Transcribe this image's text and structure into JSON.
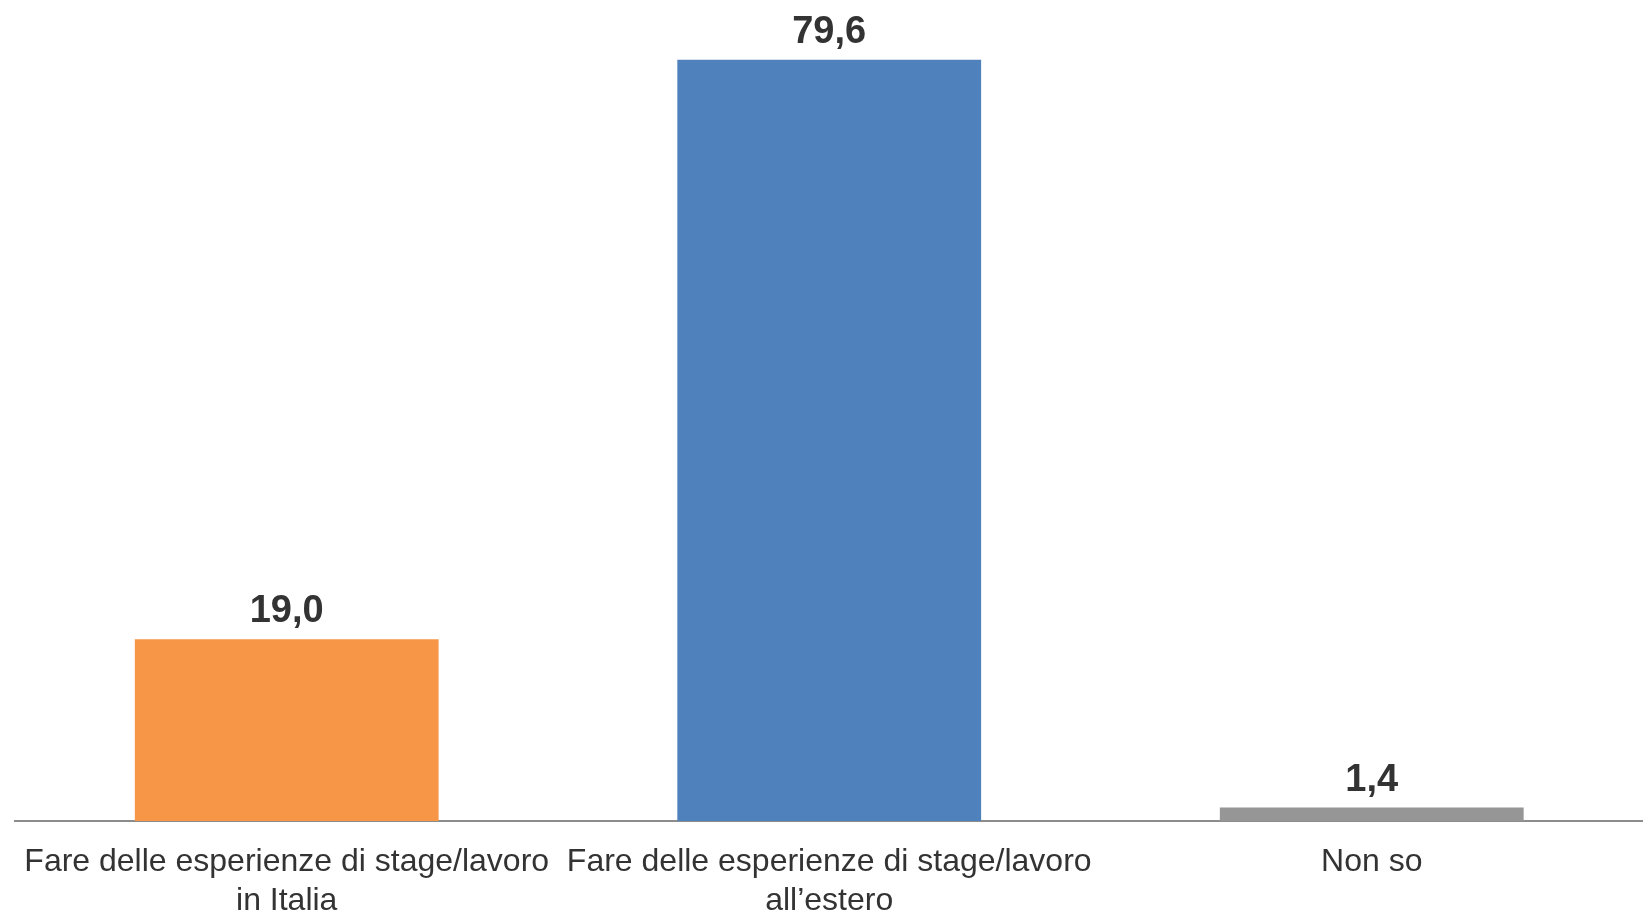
{
  "chart_data": {
    "type": "bar",
    "categories": [
      "Fare delle esperienze di stage/lavoro in Italia",
      "Fare delle esperienze di stage/lavoro all’estero",
      "Non so"
    ],
    "values": [
      19.0,
      79.6,
      1.4
    ],
    "colors": [
      "#f79646",
      "#4f81bd",
      "#969696"
    ],
    "value_labels": [
      "19,0",
      "79,6",
      "1,4"
    ],
    "grid": false,
    "legend": false
  }
}
